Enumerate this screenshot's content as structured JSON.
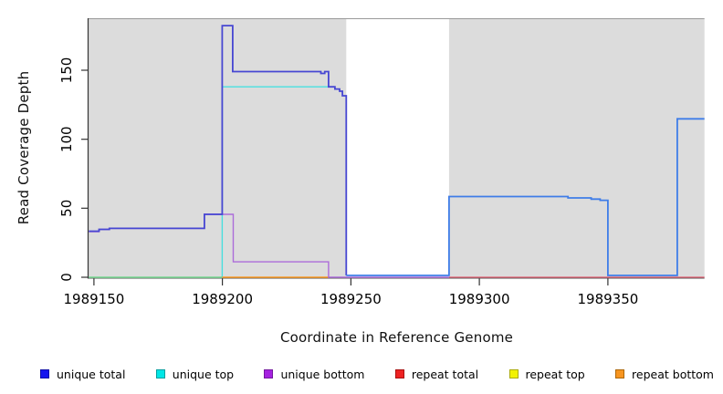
{
  "chart_data": {
    "type": "line",
    "subtype": "step-coverage",
    "title": "",
    "xlabel": "Coordinate in Reference Genome",
    "ylabel": "Read Coverage Depth",
    "xlim": [
      1989147.9,
      1989387.6
    ],
    "ylim": [
      0,
      187
    ],
    "x_ticks": [
      1989150,
      1989200,
      1989250,
      1989300,
      1989350
    ],
    "y_ticks": [
      0,
      50,
      100,
      150
    ],
    "grid": false,
    "legend_position": "bottom",
    "plot_bg_color": "#DCDCDC",
    "gap_band": {
      "from": 1989248.2,
      "to": 1989288.2,
      "color": "#FFFFFF"
    },
    "axis_color": "#333333",
    "top_border_color": "#9A9A9A",
    "series": [
      {
        "name": "unique top",
        "legend_color": "#00E6E6",
        "segments": [
          {
            "color": "#49DFDF",
            "width": 1.4,
            "points": [
              [
                1989148,
                0
              ],
              [
                1989199.9,
                0
              ],
              [
                1989199.9,
                138
              ],
              [
                1989241.3,
                138
              ]
            ]
          }
        ]
      },
      {
        "name": "repeat top",
        "legend_color": "#F2F200",
        "segments": [
          {
            "color": "#8BD47E",
            "width": 1.3,
            "points": [
              [
                1989148,
                0
              ],
              [
                1989199.9,
                0
              ]
            ]
          }
        ]
      },
      {
        "name": "repeat bottom",
        "legend_color": "#F79520",
        "segments": [
          {
            "color": "#FB9A22",
            "width": 1.5,
            "points": [
              [
                1989199.9,
                0
              ],
              [
                1989241.3,
                0
              ]
            ]
          }
        ]
      },
      {
        "name": "unique bottom",
        "legend_color": "#A521E0",
        "segments": [
          {
            "color": "#AC6CD9",
            "width": 1.4,
            "points": [
              [
                1989148,
                33
              ],
              [
                1989152,
                34.7
              ],
              [
                1989156,
                35.4
              ],
              [
                1989193,
                45.6
              ],
              [
                1989204.2,
                11.2
              ],
              [
                1989241.3,
                0
              ],
              [
                1989288.2,
                0
              ]
            ]
          }
        ]
      },
      {
        "name": "repeat total",
        "legend_color": "#EE2222",
        "segments": [
          {
            "color": "#E25C70",
            "width": 1.3,
            "points": [
              [
                1989288.2,
                0
              ],
              [
                1989387.6,
                0
              ]
            ]
          }
        ]
      },
      {
        "name": "unique total",
        "legend_color": "#1414EE",
        "segments": [
          {
            "color": "#4747D2",
            "width": 1.8,
            "points": [
              [
                1989148,
                33.4
              ],
              [
                1989152,
                34.7
              ],
              [
                1989156,
                35.4
              ],
              [
                1989193,
                45.6
              ],
              [
                1989199.9,
                182.3
              ],
              [
                1989204,
                149
              ],
              [
                1989238.3,
                147.7
              ],
              [
                1989239.8,
                149
              ],
              [
                1989241.3,
                138
              ],
              [
                1989243.8,
                136.4
              ],
              [
                1989245.6,
                134.8
              ],
              [
                1989246.7,
                131.5
              ],
              [
                1989248.2,
                1.3
              ]
            ]
          },
          {
            "color": "#3F7DE8",
            "width": 1.8,
            "points": [
              [
                1989248.2,
                1.3
              ],
              [
                1989288.2,
                58.5
              ],
              [
                1989334.5,
                57.5
              ],
              [
                1989343.5,
                56.6
              ],
              [
                1989347,
                55.8
              ],
              [
                1989350,
                1.3
              ],
              [
                1989377,
                114.8
              ],
              [
                1989387.6,
                114.8
              ]
            ]
          }
        ]
      }
    ]
  },
  "legend": {
    "items": [
      {
        "label": "unique total",
        "color": "#1414EE",
        "border": "#0E0EA8"
      },
      {
        "label": "unique top",
        "color": "#00E6E6",
        "border": "#009E9E"
      },
      {
        "label": "unique bottom",
        "color": "#A521E0",
        "border": "#74189E"
      },
      {
        "label": "repeat total",
        "color": "#EE2222",
        "border": "#A81010"
      },
      {
        "label": "repeat top",
        "color": "#F2F200",
        "border": "#ABAB00"
      },
      {
        "label": "repeat bottom",
        "color": "#F79520",
        "border": "#AD6708"
      }
    ]
  }
}
